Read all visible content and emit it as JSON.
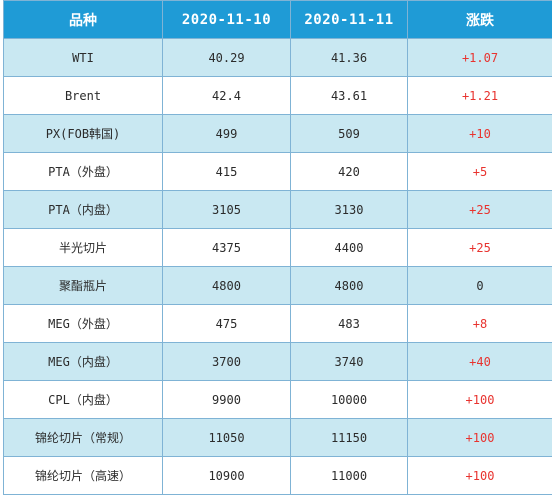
{
  "table": {
    "headers": [
      "品种",
      "2020-11-10",
      "2020-11-11",
      "涨跌"
    ],
    "rows": [
      {
        "name": "WTI",
        "d1": "40.29",
        "d2": "41.36",
        "change": "+1.07"
      },
      {
        "name": "Brent",
        "d1": "42.4",
        "d2": "43.61",
        "change": "+1.21"
      },
      {
        "name": "PX(FOB韩国)",
        "d1": "499",
        "d2": "509",
        "change": "+10"
      },
      {
        "name": "PTA（外盘）",
        "d1": "415",
        "d2": "420",
        "change": "+5"
      },
      {
        "name": "PTA（内盘）",
        "d1": "3105",
        "d2": "3130",
        "change": "+25"
      },
      {
        "name": "半光切片",
        "d1": "4375",
        "d2": "4400",
        "change": "+25"
      },
      {
        "name": "聚酯瓶片",
        "d1": "4800",
        "d2": "4800",
        "change": "0"
      },
      {
        "name": "MEG（外盘）",
        "d1": "475",
        "d2": "483",
        "change": "+8"
      },
      {
        "name": "MEG（内盘）",
        "d1": "3700",
        "d2": "3740",
        "change": "+40"
      },
      {
        "name": "CPL（内盘）",
        "d1": "9900",
        "d2": "10000",
        "change": "+100"
      },
      {
        "name": "锦纶切片（常规）",
        "d1": "11050",
        "d2": "11150",
        "change": "+100"
      },
      {
        "name": "锦纶切片（高速）",
        "d1": "10900",
        "d2": "11000",
        "change": "+100"
      }
    ]
  },
  "colors": {
    "header_bg": "#1f9bd6",
    "header_text": "#ffffff",
    "row_shaded": "#c9e8f2",
    "row_plain": "#ffffff",
    "border": "#7fb3d5",
    "up": "#e8332f",
    "text": "#2b2b2b"
  }
}
